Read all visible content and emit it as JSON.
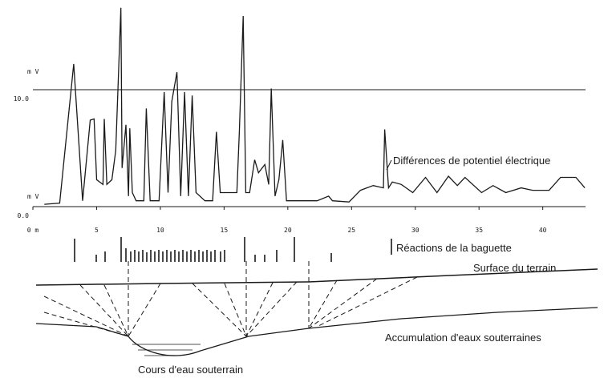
{
  "chart_data": {
    "type": "line",
    "color": "#1a1a1a",
    "ylabel_top": "m V",
    "ylabel_bottom": "m V",
    "annotation": "Différences de potentiel électrique",
    "x": [
      0.9,
      2.1,
      3.2,
      3.9,
      4.5,
      4.8,
      5.0,
      5.5,
      5.6,
      5.8,
      6.2,
      6.5,
      6.9,
      7.0,
      7.3,
      7.5,
      7.6,
      7.8,
      8.1,
      8.7,
      8.9,
      9.2,
      9.9,
      10.3,
      10.6,
      10.9,
      11.3,
      11.6,
      11.9,
      12.2,
      12.5,
      12.8,
      13.5,
      14.1,
      14.4,
      14.7,
      16.0,
      16.2,
      16.5,
      16.7,
      17.0,
      17.4,
      17.7,
      18.2,
      18.5,
      18.7,
      19.0,
      19.3,
      19.6,
      19.9,
      20.4,
      22.3,
      23.2,
      23.5,
      24.8,
      25.7,
      26.7,
      27.5,
      27.6,
      27.9,
      28.2,
      28.9,
      29.8,
      30.8,
      31.7,
      32.6,
      33.3,
      33.9,
      35.2,
      36.1,
      37.1,
      38.3,
      39.2,
      40.5,
      41.4,
      42.6,
      43.3
    ],
    "values": [
      0.2,
      0.3,
      12.2,
      0.5,
      7.4,
      7.5,
      2.3,
      1.9,
      7.5,
      1.9,
      2.3,
      4.8,
      17.0,
      3.3,
      7.0,
      0.9,
      6.7,
      1.2,
      0.5,
      0.5,
      8.4,
      0.5,
      0.5,
      9.8,
      1.2,
      9.0,
      11.5,
      0.9,
      9.8,
      0.9,
      9.5,
      1.2,
      0.5,
      0.5,
      6.4,
      1.2,
      1.2,
      6.4,
      16.3,
      1.2,
      1.2,
      4.0,
      2.9,
      3.6,
      1.9,
      10.1,
      0.9,
      2.3,
      5.7,
      0.5,
      0.5,
      0.5,
      0.9,
      0.5,
      0.4,
      1.4,
      1.8,
      1.6,
      6.6,
      1.6,
      2.1,
      1.9,
      1.2,
      2.5,
      1.2,
      2.6,
      1.8,
      2.5,
      1.2,
      1.8,
      1.2,
      1.6,
      1.4,
      1.4,
      2.5,
      2.5,
      1.6
    ],
    "xlim": [
      0,
      44.3
    ],
    "ylim": [
      0,
      17.5
    ],
    "xticks": [
      {
        "value": 0,
        "label": "0 m"
      },
      5,
      10,
      15,
      20,
      25,
      30,
      35,
      40
    ],
    "yticks": [
      {
        "value": 0,
        "label": "0.0"
      },
      {
        "value": 10,
        "label": "10.0"
      }
    ],
    "grid": true
  },
  "diagram": {
    "rod_label": "Réactions de la baguette",
    "surface_label": "Surface du terrain",
    "accumulation_label": "Accumulation d'eaux souterraines",
    "stream_label": "Cours d'eau souterrain"
  }
}
